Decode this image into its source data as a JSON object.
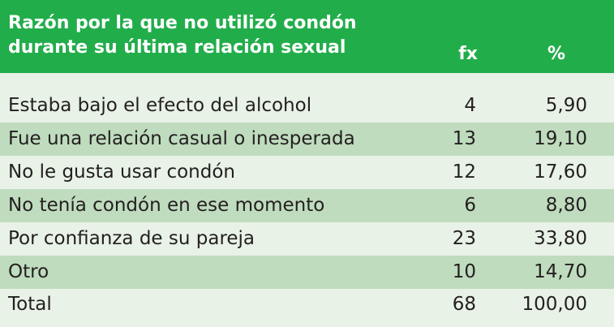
{
  "table": {
    "header": {
      "reason_line1": "Razón por la que no utilizó condón",
      "reason_line2": "durante su última relación sexual",
      "fx": "fx",
      "percent": "%"
    },
    "rows": [
      {
        "reason": "Estaba bajo el efecto del alcohol",
        "fx": "4",
        "percent": "5,90"
      },
      {
        "reason": "Fue una relación casual o inesperada",
        "fx": "13",
        "percent": "19,10"
      },
      {
        "reason": "No le gusta usar condón",
        "fx": "12",
        "percent": "17,60"
      },
      {
        "reason": "No tenía condón en ese momento",
        "fx": "6",
        "percent": "8,80"
      },
      {
        "reason": "Por confianza de su pareja",
        "fx": "23",
        "percent": "33,80"
      },
      {
        "reason": "Otro",
        "fx": "10",
        "percent": "14,70"
      }
    ],
    "total": {
      "reason": "Total",
      "fx": "68",
      "percent": "100,00"
    }
  },
  "colors": {
    "header_bg": "#22ad4b",
    "row_light": "#e8f2e6",
    "row_dark": "#bfdcbe",
    "text": "#231f20"
  }
}
